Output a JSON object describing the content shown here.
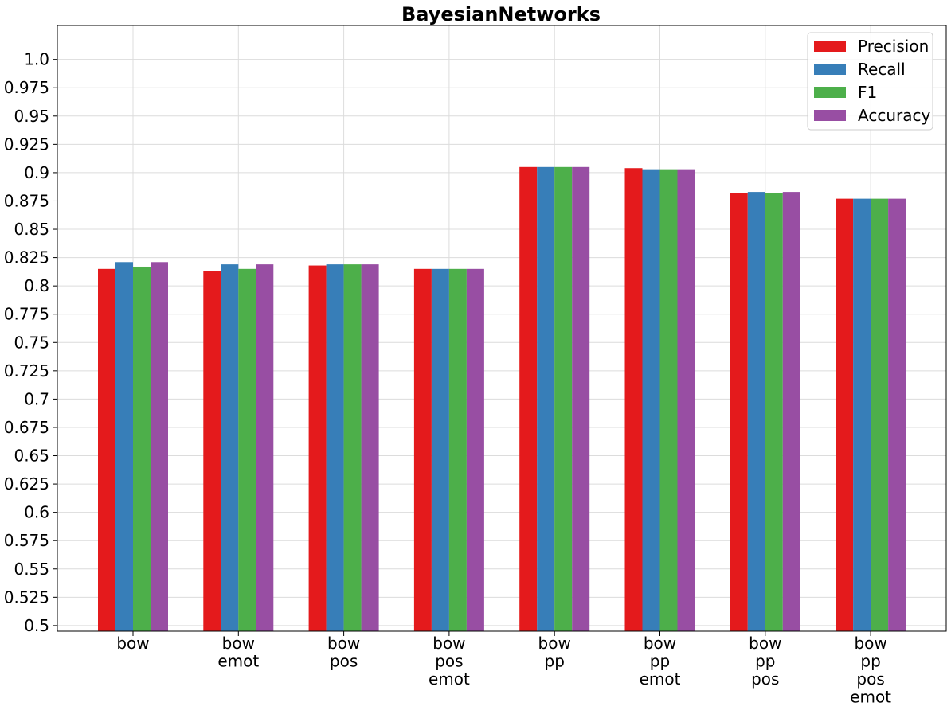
{
  "chart_data": {
    "type": "bar",
    "title": "BayesianNetworks",
    "xlabel": "",
    "ylabel": "",
    "categories": [
      [
        "bow"
      ],
      [
        "bow",
        "emot"
      ],
      [
        "bow",
        "pos"
      ],
      [
        "bow",
        "pos",
        "emot"
      ],
      [
        "bow",
        "pp"
      ],
      [
        "bow",
        "pp",
        "emot"
      ],
      [
        "bow",
        "pp",
        "pos"
      ],
      [
        "bow",
        "pp",
        "pos",
        "emot"
      ]
    ],
    "series": [
      {
        "name": "Precision",
        "color": "#e41a1c",
        "values": [
          0.815,
          0.813,
          0.818,
          0.815,
          0.905,
          0.904,
          0.882,
          0.877
        ]
      },
      {
        "name": "Recall",
        "color": "#377eb8",
        "values": [
          0.821,
          0.819,
          0.819,
          0.815,
          0.905,
          0.903,
          0.883,
          0.877
        ]
      },
      {
        "name": "F1",
        "color": "#4daf4a",
        "values": [
          0.817,
          0.815,
          0.819,
          0.815,
          0.905,
          0.903,
          0.882,
          0.877
        ]
      },
      {
        "name": "Accuracy",
        "color": "#984ea3",
        "values": [
          0.821,
          0.819,
          0.819,
          0.815,
          0.905,
          0.903,
          0.883,
          0.877
        ]
      }
    ],
    "ylim": [
      0.495,
      1.03
    ],
    "yticks": [
      0.5,
      0.525,
      0.55,
      0.575,
      0.6,
      0.625,
      0.65,
      0.675,
      0.7,
      0.725,
      0.75,
      0.775,
      0.8,
      0.825,
      0.85,
      0.875,
      0.9,
      0.925,
      0.95,
      0.975,
      1.0
    ],
    "ytick_labels": [
      "0.5",
      "0.525",
      "0.55",
      "0.575",
      "0.6",
      "0.625",
      "0.65",
      "0.675",
      "0.7",
      "0.725",
      "0.75",
      "0.775",
      "0.8",
      "0.825",
      "0.85",
      "0.875",
      "0.9",
      "0.925",
      "0.95",
      "0.975",
      "1.0"
    ],
    "grid": true,
    "legend_position": "top-right"
  }
}
